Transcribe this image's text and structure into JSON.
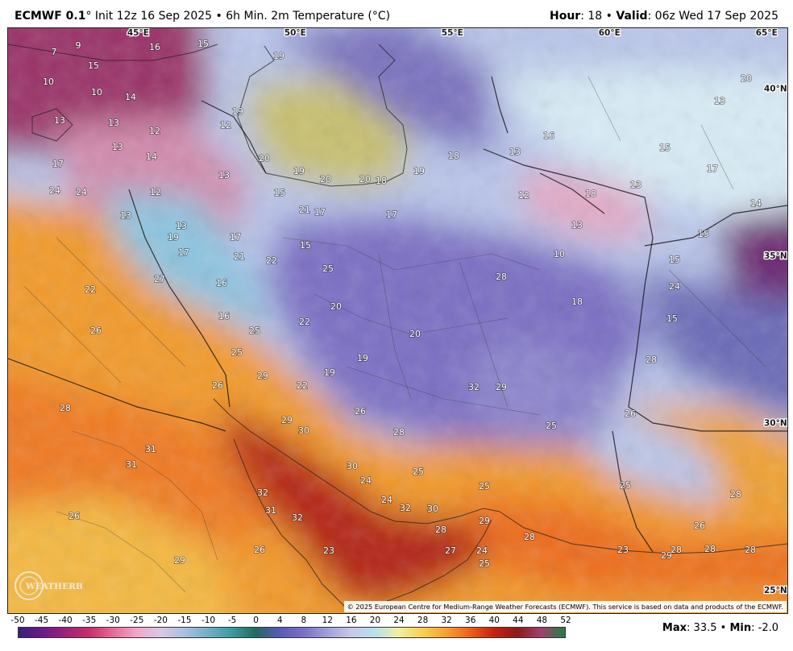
{
  "header": {
    "model": "ECMWF 0.1",
    "init_sep": "°",
    "init": "Init 12z 16 Sep 2025",
    "bullet": "•",
    "product": "6h Min. 2m Temperature (°C)",
    "hour_label": "Hour",
    "hour_value": ": 18",
    "valid_label": "Valid",
    "valid_value": ": 06z Wed 17 Sep 2025"
  },
  "map": {
    "coord_labels": [
      {
        "text": "45°E",
        "lon": 45,
        "lat": null
      },
      {
        "text": "50°E",
        "lon": 50,
        "lat": null
      },
      {
        "text": "55°E",
        "lon": 55,
        "lat": null
      },
      {
        "text": "60°E",
        "lon": 60,
        "lat": null
      },
      {
        "text": "65°E",
        "lon": 65,
        "lat": null
      },
      {
        "text": "40°N",
        "lon": null,
        "lat": 40
      },
      {
        "text": "35°N",
        "lon": null,
        "lat": 35
      },
      {
        "text": "30°N",
        "lon": null,
        "lat": 30
      },
      {
        "text": "25°N",
        "lon": null,
        "lat": 25
      }
    ],
    "temperature_labels": [
      "7",
      "9",
      "16",
      "15",
      "15",
      "19",
      "10",
      "10",
      "14",
      "13",
      "13",
      "12",
      "12",
      "19",
      "13",
      "14",
      "17",
      "20",
      "19",
      "20",
      "20",
      "18",
      "19",
      "18",
      "13",
      "16",
      "15",
      "24",
      "24",
      "12",
      "13",
      "15",
      "21",
      "17",
      "17",
      "12",
      "18",
      "13",
      "13",
      "13",
      "14",
      "15",
      "17",
      "20",
      "13",
      "17",
      "13",
      "15",
      "19",
      "17",
      "21",
      "22",
      "27",
      "16",
      "15",
      "25",
      "10",
      "28",
      "22",
      "20",
      "18",
      "24",
      "16",
      "22",
      "26",
      "25",
      "15",
      "25",
      "20",
      "19",
      "28",
      "29",
      "19",
      "32",
      "29",
      "22",
      "26",
      "26",
      "26",
      "28",
      "25",
      "29",
      "30",
      "28",
      "31",
      "31",
      "30",
      "25",
      "32",
      "31",
      "32",
      "24",
      "25",
      "24",
      "32",
      "30",
      "28",
      "29",
      "28",
      "25",
      "28",
      "26",
      "26",
      "26",
      "23",
      "27",
      "24",
      "25",
      "23",
      "29",
      "28",
      "28",
      "28",
      "29"
    ]
  },
  "copyright": "© 2025 European Centre for Medium-Range Weather Forecasts (ECMWF). This service is based on data and products of the ECMWF.",
  "logo_text": "WEATHERBELL",
  "colorbar": {
    "ticks": [
      "-50",
      "-45",
      "-40",
      "-35",
      "-30",
      "-25",
      "-20",
      "-15",
      "-10",
      "-5",
      "0",
      "4",
      "8",
      "12",
      "16",
      "20",
      "24",
      "28",
      "32",
      "36",
      "40",
      "44",
      "48",
      "52"
    ],
    "stops": [
      "#3a1e7a",
      "#6a1a8a",
      "#a0207a",
      "#c8306a",
      "#e86a9a",
      "#f0a8c8",
      "#d8c8e8",
      "#a8c0e0",
      "#6fb0c8",
      "#3a9aa0",
      "#206a60",
      "#5a5ab8",
      "#7a70c8",
      "#a0a0d8",
      "#c8c8e8",
      "#b8e0f0",
      "#f0f0a0",
      "#f8d050",
      "#f8a030",
      "#f06018",
      "#c82010",
      "#901818",
      "#a04070",
      "#208040"
    ]
  },
  "stats": {
    "max_label": "Max",
    "max_value": ": 33.5",
    "bullet": "•",
    "min_label": "Min",
    "min_value": ": -2.0"
  },
  "colors": {
    "warm": "#e05010",
    "hot": "#a81810",
    "cool": "#7a70c0",
    "cold_pink": "#c05a80",
    "pale": "#d8e8f4"
  }
}
